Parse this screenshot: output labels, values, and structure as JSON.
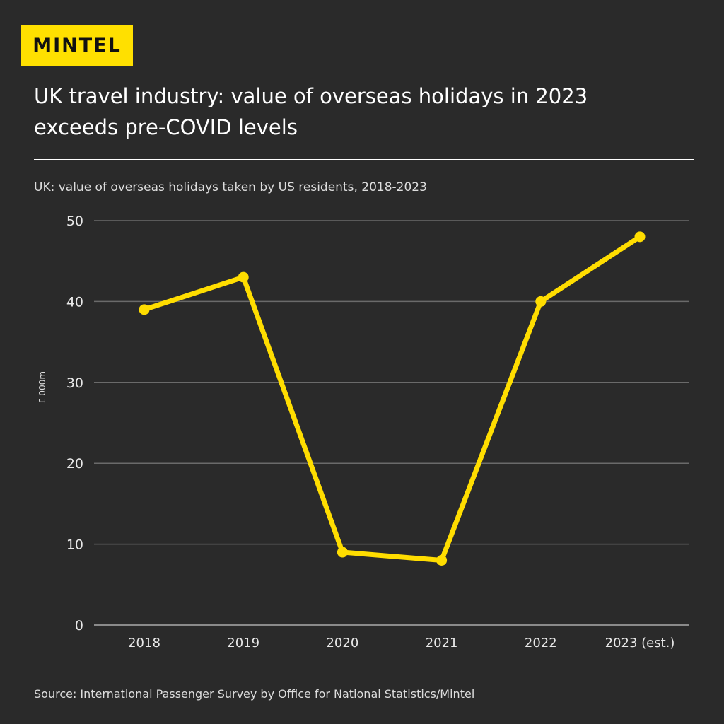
{
  "logo": "MINTEL",
  "title": "UK travel industry: value of overseas holidays in 2023 exceeds pre-COVID levels",
  "subtitle": "UK: value of overseas holidays taken by US residents, 2018-2023",
  "source": "Source: International Passenger Survey by Office for National Statistics/Mintel",
  "colors": {
    "background": "#2a2a2a",
    "line": "#ffdd00",
    "logo_bg": "#ffe000",
    "grid": "#6a6a6a"
  },
  "chart_data": {
    "type": "line",
    "categories": [
      "2018",
      "2019",
      "2020",
      "2021",
      "2022",
      "2023 (est.)"
    ],
    "values": [
      39,
      43,
      9,
      8,
      40,
      48
    ],
    "xlabel": "",
    "ylabel": "£ 000m",
    "ylim": [
      0,
      50
    ],
    "yticks": [
      0,
      10,
      20,
      30,
      40,
      50
    ],
    "grid": true,
    "markers": true
  }
}
